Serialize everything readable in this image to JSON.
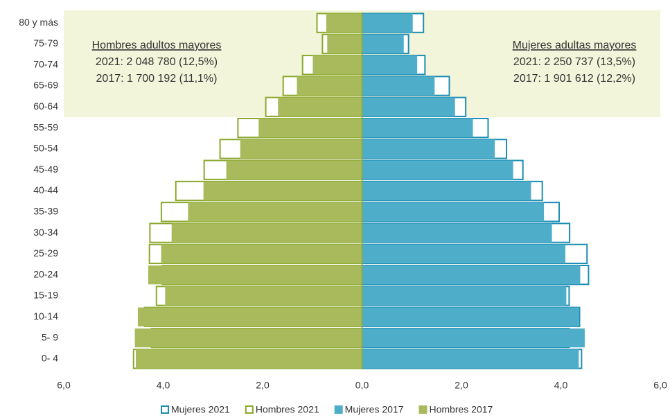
{
  "chart_data": {
    "type": "pyramid",
    "categories": [
      "80 y más",
      "75-79",
      "70-74",
      "65-69",
      "60-64",
      "55-59",
      "50-54",
      "45-49",
      "40-44",
      "35-39",
      "30-34",
      "25-29",
      "20-24",
      "15-19",
      "10-14",
      "5- 9",
      "0- 4"
    ],
    "series": [
      {
        "name": "Mujeres 2021",
        "color": "#1b8db3",
        "side": "right",
        "style": "outline",
        "values": [
          1.25,
          0.95,
          1.28,
          1.77,
          2.1,
          2.55,
          2.92,
          3.25,
          3.64,
          3.98,
          4.19,
          4.54,
          4.57,
          4.18,
          4.39,
          4.18,
          4.43
        ]
      },
      {
        "name": "Hombres 2021",
        "color": "#8aa82c",
        "side": "left",
        "style": "outline",
        "values": [
          0.92,
          0.81,
          1.21,
          1.6,
          1.95,
          2.51,
          2.87,
          3.19,
          3.76,
          4.05,
          4.28,
          4.29,
          4.03,
          4.15,
          4.39,
          4.25,
          4.61
        ]
      },
      {
        "name": "Mujeres 2017",
        "color": "#4eaec9",
        "side": "right",
        "style": "fill",
        "values": [
          1.02,
          0.84,
          1.11,
          1.46,
          1.87,
          2.23,
          2.67,
          3.04,
          3.4,
          3.66,
          3.82,
          4.09,
          4.39,
          4.11,
          4.37,
          4.48,
          4.36
        ]
      },
      {
        "name": "Hombres 2017",
        "color": "#a9ba5c",
        "side": "left",
        "style": "fill",
        "values": [
          0.72,
          0.7,
          0.99,
          1.31,
          1.69,
          2.08,
          2.45,
          2.73,
          3.19,
          3.5,
          3.83,
          4.04,
          4.3,
          3.96,
          4.51,
          4.57,
          4.55
        ]
      }
    ],
    "xlim": [
      -6,
      6
    ],
    "xticks": [
      {
        "value": -6,
        "label": "6,0"
      },
      {
        "value": -4,
        "label": "4,0"
      },
      {
        "value": -2,
        "label": "2,0"
      },
      {
        "value": 0,
        "label": "0,0"
      },
      {
        "value": 2,
        "label": "2,0"
      },
      {
        "value": 4,
        "label": "4,0"
      },
      {
        "value": 6,
        "label": "6,0"
      }
    ],
    "annotations": [
      {
        "title": "Hombres adultos mayores",
        "lines": [
          "2021: 2 048 780 (12,5%)",
          "2017: 1 700 192 (11,1%)"
        ]
      },
      {
        "title": "Mujeres adultas mayores",
        "lines": [
          "2021: 2 250 737 (13,5%)",
          "2017: 1 901 612 (12,2%)"
        ]
      }
    ]
  }
}
